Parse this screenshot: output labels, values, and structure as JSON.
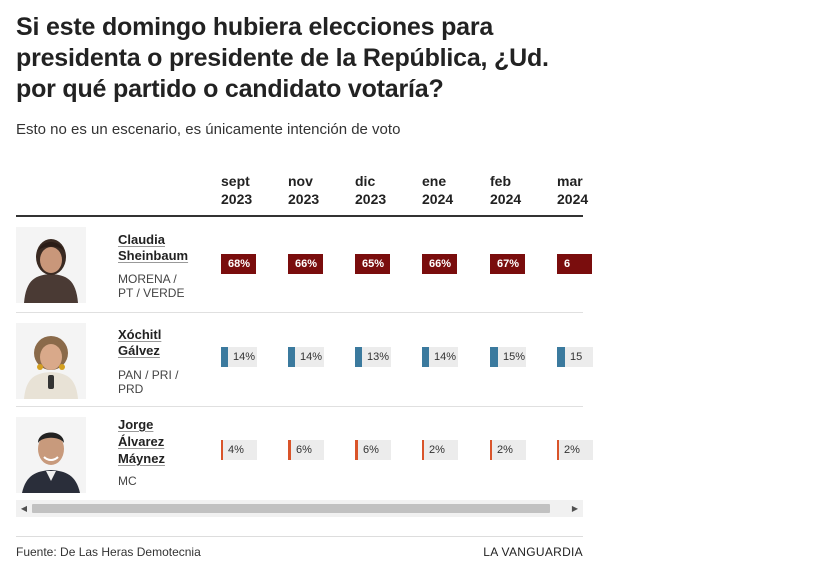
{
  "title": "Si este domingo hubiera elecciones para presidenta o presidente de la República, ¿Ud. por qué partido o candidato votaría?",
  "subtitle": "Esto no es un escenario, es únicamente intención de voto",
  "columns": [
    {
      "month": "sept",
      "year": "2023"
    },
    {
      "month": "nov",
      "year": "2023"
    },
    {
      "month": "dic",
      "year": "2023"
    },
    {
      "month": "ene",
      "year": "2024"
    },
    {
      "month": "feb",
      "year": "2024"
    },
    {
      "month": "mar",
      "year": "2024"
    }
  ],
  "candidates": [
    {
      "name_line1": "Claudia",
      "name_line2": "Sheinbaum",
      "name_line3": "",
      "party_line1": "MORENA /",
      "party_line2": "PT / VERDE",
      "party_line3": ""
    },
    {
      "name_line1": "Xóchitl",
      "name_line2": "Gálvez",
      "name_line3": "",
      "party_line1": "PAN / PRI /",
      "party_line2": "PRD",
      "party_line3": ""
    },
    {
      "name_line1": "Jorge",
      "name_line2": "Álvarez",
      "name_line3": "Máynez",
      "party_line1": "MC",
      "party_line2": "",
      "party_line3": ""
    }
  ],
  "chart_data": {
    "type": "table",
    "title": "Si este domingo hubiera elecciones para presidenta o presidente de la República, ¿Ud. por qué partido o candidato votaría?",
    "subtitle": "Esto no es un escenario, es únicamente intención de voto",
    "categories": [
      "sept 2023",
      "nov 2023",
      "dic 2023",
      "ene 2024",
      "feb 2024",
      "mar 2024"
    ],
    "series": [
      {
        "name": "Claudia Sheinbaum",
        "values": [
          68,
          66,
          65,
          66,
          67,
          6
        ],
        "labels": [
          "68%",
          "66%",
          "65%",
          "66%",
          "67%",
          "6"
        ],
        "color": "#7a0d0d"
      },
      {
        "name": "Xóchitl Gálvez",
        "values": [
          14,
          14,
          13,
          14,
          15,
          15
        ],
        "labels": [
          "14%",
          "14%",
          "13%",
          "14%",
          "15%",
          "15"
        ],
        "color": "#3b7a9e"
      },
      {
        "name": "Jorge Álvarez Máynez",
        "values": [
          4,
          6,
          6,
          2,
          2,
          2
        ],
        "labels": [
          "4%",
          "6%",
          "6%",
          "2%",
          "2%",
          "2%"
        ],
        "color": "#d9542a"
      }
    ]
  },
  "footer": {
    "source": "Fuente: De Las Heras Demotecnia",
    "brand": "LA VANGUARDIA"
  },
  "scrollbar": {
    "left_arrow": "◀",
    "right_arrow": "▶"
  }
}
